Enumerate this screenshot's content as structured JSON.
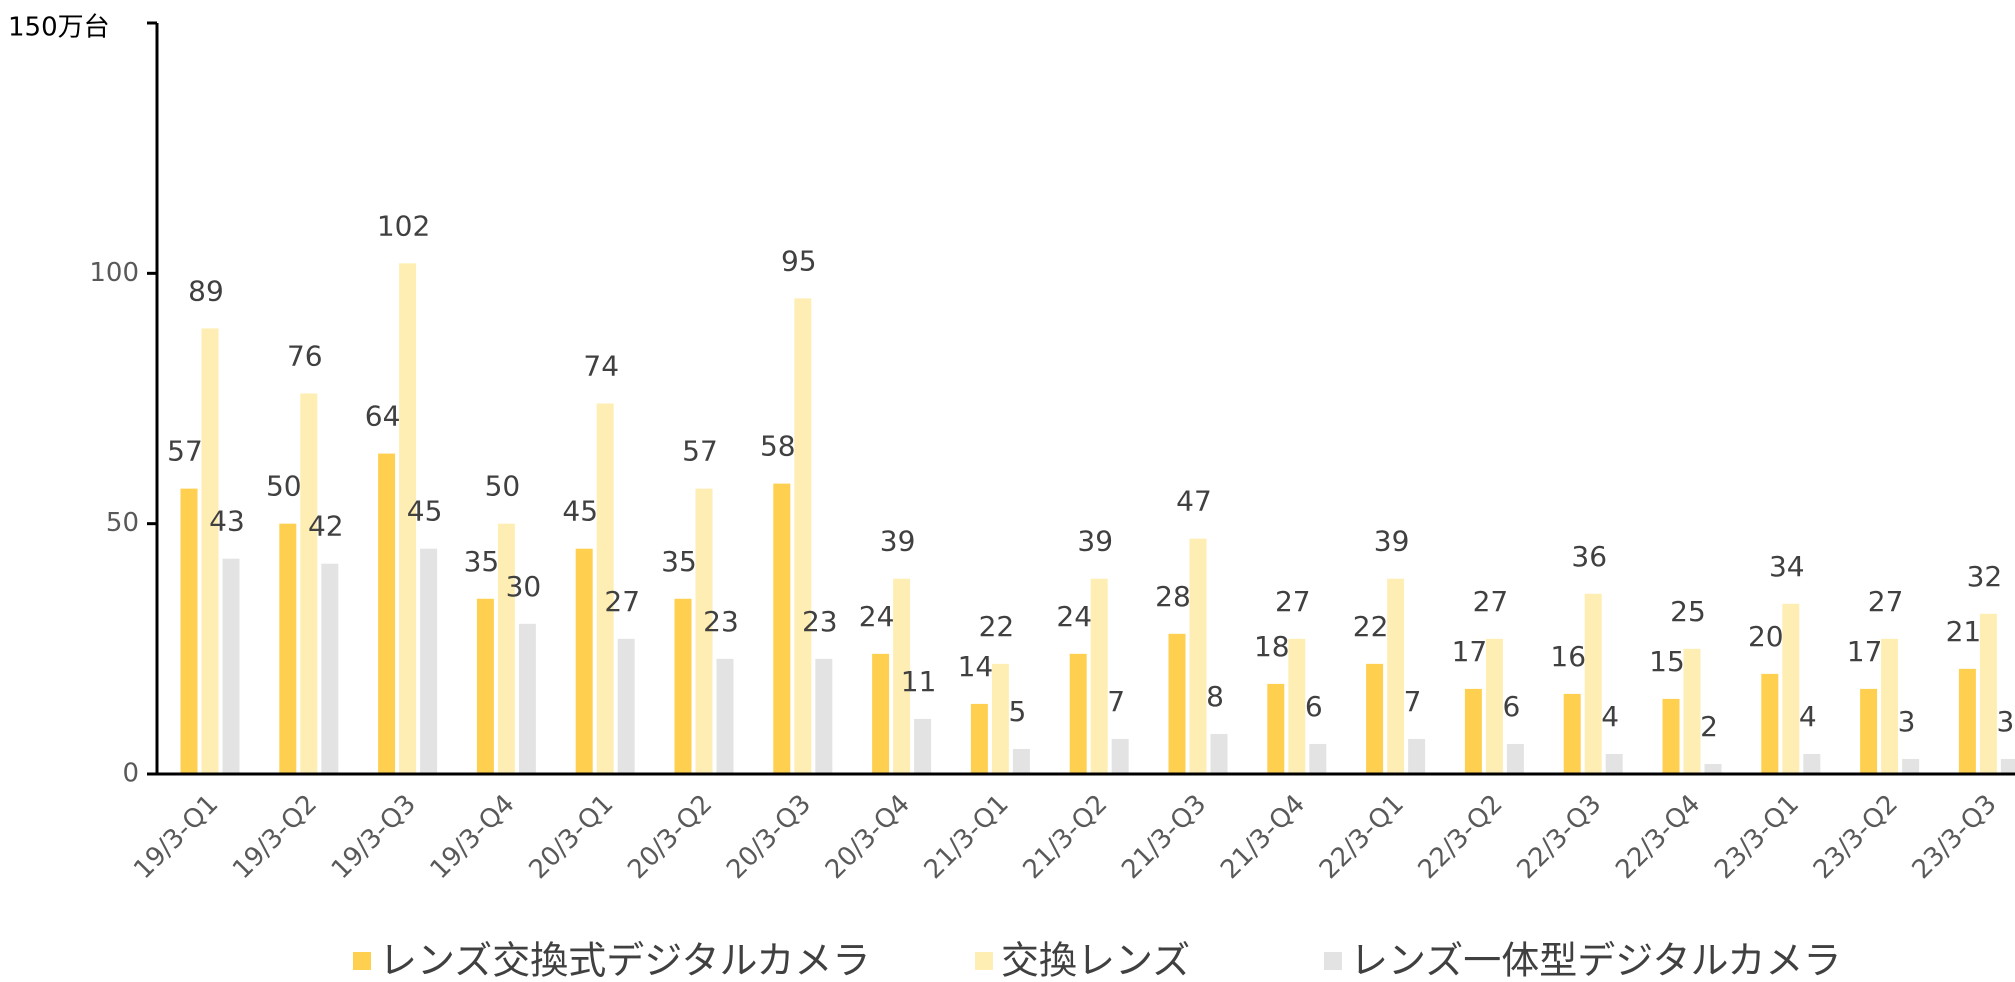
{
  "chart_data": {
    "type": "bar",
    "categories": [
      "19/3-Q1",
      "19/3-Q2",
      "19/3-Q3",
      "19/3-Q4",
      "20/3-Q1",
      "20/3-Q2",
      "20/3-Q3",
      "20/3-Q4",
      "21/3-Q1",
      "21/3-Q2",
      "21/3-Q3",
      "21/3-Q4",
      "22/3-Q1",
      "22/3-Q2",
      "22/3-Q3",
      "22/3-Q4",
      "23/3-Q1",
      "23/3-Q2",
      "23/3-Q3"
    ],
    "series": [
      {
        "name": "レンズ交換式デジタルカメラ",
        "color": "#ffd04f",
        "values": [
          57,
          50,
          64,
          35,
          45,
          35,
          58,
          24,
          14,
          24,
          28,
          18,
          22,
          17,
          16,
          15,
          20,
          17,
          21
        ]
      },
      {
        "name": "交換レンズ",
        "color": "#ffeeb3",
        "values": [
          89,
          76,
          102,
          50,
          74,
          57,
          95,
          39,
          22,
          39,
          47,
          27,
          39,
          27,
          36,
          25,
          34,
          27,
          32
        ]
      },
      {
        "name": "レンズ一体型デジタルカメラ",
        "color": "#e3e3e3",
        "values": [
          43,
          42,
          45,
          30,
          27,
          23,
          23,
          11,
          5,
          7,
          8,
          6,
          7,
          6,
          4,
          2,
          4,
          3,
          3
        ]
      }
    ],
    "ylim": [
      0,
      150
    ],
    "yticks": [
      0,
      50,
      100,
      {
        "value": 150,
        "label": "150万台"
      }
    ]
  }
}
